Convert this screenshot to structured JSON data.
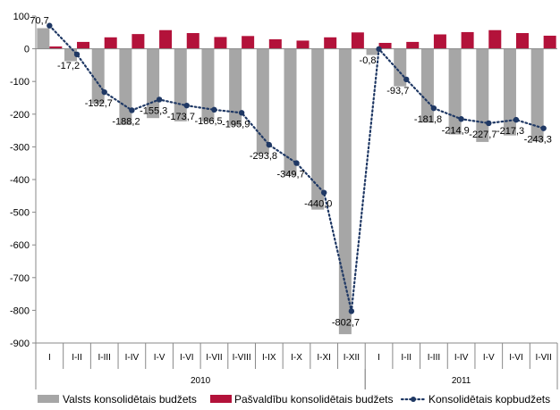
{
  "chart_data": {
    "type": "bar",
    "categories": [
      "I",
      "I-II",
      "I-III",
      "I-IV",
      "I-V",
      "I-VI",
      "I-VII",
      "I-VIII",
      "I-IX",
      "I-X",
      "I-XI",
      "I-XII",
      "I",
      "I-II",
      "I-III",
      "I-IV",
      "I-V",
      "I-VI",
      "I-VII"
    ],
    "groups": [
      {
        "label": "2010",
        "start": 0,
        "count": 12
      },
      {
        "label": "2011",
        "start": 12,
        "count": 7
      }
    ],
    "ylim": [
      -900,
      100
    ],
    "yticks": [
      100,
      0,
      -100,
      -200,
      -300,
      -400,
      -500,
      -600,
      -700,
      -800,
      -900
    ],
    "grid": false,
    "legend_position": "bottom",
    "series": [
      {
        "name": "Valsts konsolidētais budžets",
        "kind": "bar",
        "color": "#a6a6a6",
        "values": [
          63,
          -38,
          -168,
          -233,
          -212,
          -222,
          -222,
          -235,
          -322,
          -388,
          -492,
          -873,
          -19,
          -115,
          -226,
          -262,
          -285,
          -265,
          -283
        ]
      },
      {
        "name": "Pašvaldību konsolidētais budžets",
        "kind": "bar",
        "color": "#b3123a",
        "values": [
          7,
          21,
          35,
          45,
          57,
          48,
          36,
          39,
          29,
          25,
          35,
          50,
          18,
          21,
          44,
          51,
          57,
          48,
          40
        ]
      },
      {
        "name": "Konsolidētais kopbudžets",
        "kind": "line",
        "color": "#1f3864",
        "values": [
          70.7,
          -17.2,
          -132.7,
          -188.2,
          -155.3,
          -173.7,
          -186.5,
          -195.9,
          -293.8,
          -349.7,
          -440.0,
          -802.7,
          -0.8,
          -93.7,
          -181.8,
          -214.9,
          -227.7,
          -217.3,
          -243.3
        ],
        "labels": [
          "70,7",
          "-17,2",
          "-132,7",
          "-188,2",
          "-155,3",
          "-173,7",
          "-186,5",
          "-195,9",
          "-293,8",
          "-349,7",
          "-440,0",
          "-802,7",
          "-0,8",
          "-93,7",
          "-181,8",
          "-214,9",
          "-227,7",
          "-217,3",
          "-243,3"
        ]
      }
    ]
  }
}
